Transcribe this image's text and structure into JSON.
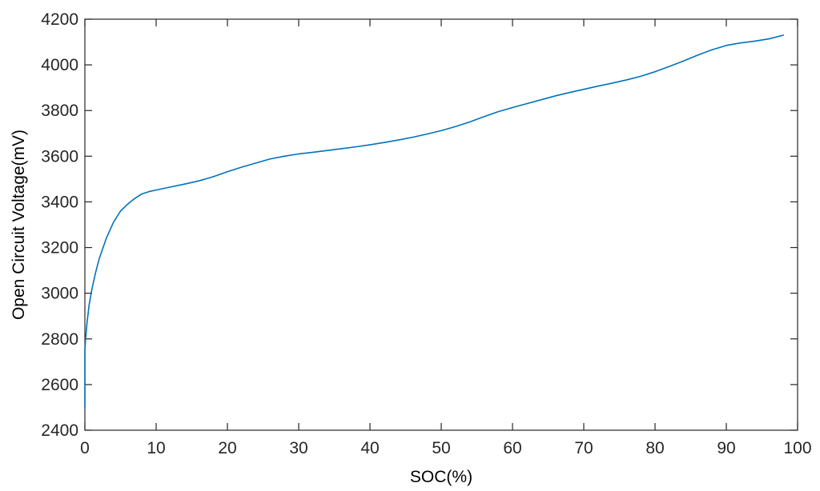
{
  "chart_data": {
    "type": "line",
    "title": "",
    "xlabel": "SOC(%)",
    "ylabel": "Open Circuit Voltage(mV)",
    "xlim": [
      0,
      100
    ],
    "ylim": [
      2400,
      4200
    ],
    "xticks": [
      0,
      10,
      20,
      30,
      40,
      50,
      60,
      70,
      80,
      90,
      100
    ],
    "yticks": [
      2400,
      2600,
      2800,
      3000,
      3200,
      3400,
      3600,
      3800,
      4000,
      4200
    ],
    "grid": false,
    "legend": "none",
    "series": [
      {
        "color": "#0072BD",
        "x": [
          0,
          0,
          0.1,
          0.3,
          0.6,
          1,
          1.5,
          2,
          3,
          4,
          5,
          6,
          7,
          8,
          9,
          10,
          12,
          14,
          16,
          18,
          20,
          22,
          24,
          26,
          28,
          30,
          32,
          34,
          36,
          38,
          40,
          42,
          44,
          46,
          48,
          50,
          52,
          54,
          56,
          58,
          60,
          62,
          64,
          66,
          68,
          70,
          72,
          74,
          76,
          78,
          80,
          82,
          84,
          86,
          88,
          90,
          92,
          94,
          96,
          98
        ],
        "values": [
          2500,
          2750,
          2800,
          2870,
          2950,
          3020,
          3090,
          3150,
          3240,
          3310,
          3360,
          3390,
          3415,
          3435,
          3445,
          3452,
          3465,
          3478,
          3492,
          3510,
          3532,
          3552,
          3570,
          3588,
          3600,
          3610,
          3617,
          3625,
          3633,
          3641,
          3650,
          3660,
          3671,
          3683,
          3697,
          3712,
          3730,
          3750,
          3773,
          3795,
          3813,
          3830,
          3847,
          3864,
          3879,
          3893,
          3907,
          3920,
          3934,
          3950,
          3970,
          3993,
          4017,
          4043,
          4066,
          4085,
          4096,
          4104,
          4114,
          4130
        ]
      }
    ]
  }
}
